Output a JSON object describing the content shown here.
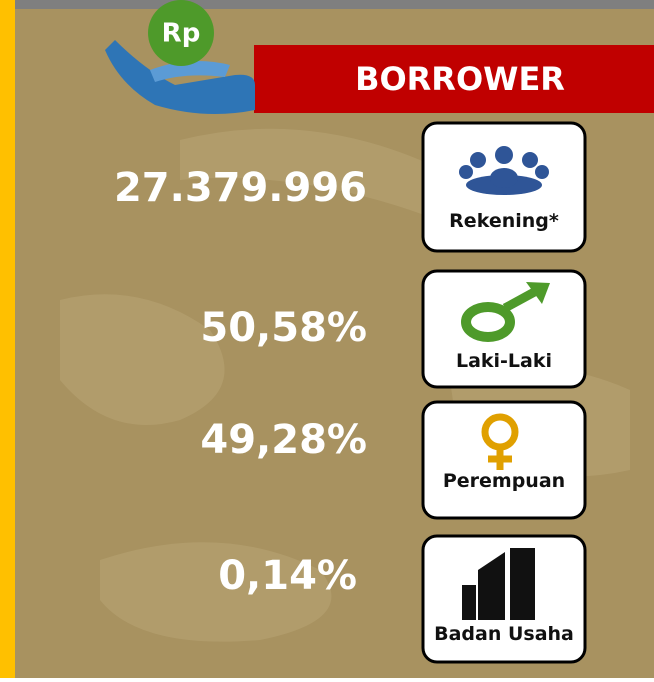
{
  "header": {
    "badge": "Rp",
    "title": "BORROWER"
  },
  "stats": [
    {
      "value": "27.379.996",
      "label": "Rekening*"
    },
    {
      "value": "50,58%",
      "label": "Laki-Laki"
    },
    {
      "value": "49,28%",
      "label": "Perempuan"
    },
    {
      "value": "0,14%",
      "label": "Badan Usaha"
    }
  ]
}
